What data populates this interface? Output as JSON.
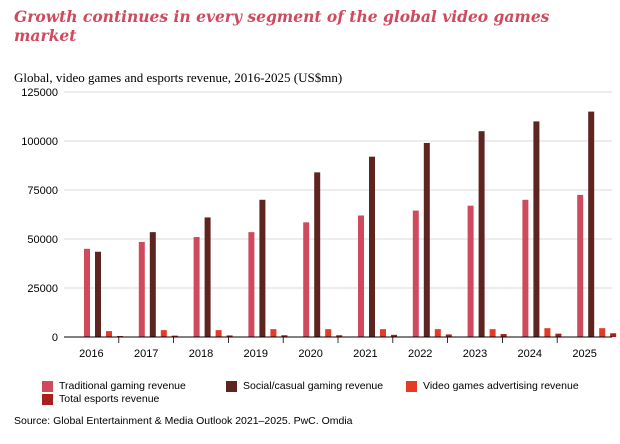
{
  "chart_data": {
    "type": "bar",
    "title": "Growth continues in every segment of the global video games market",
    "subtitle": "Global, video games and esports revenue, 2016-2025 (US$mn)",
    "source": "Source: Global Entertainment & Media Outlook 2021–2025. PwC. Omdia",
    "categories": [
      "2016",
      "2017",
      "2018",
      "2019",
      "2020",
      "2021",
      "2022",
      "2023",
      "2024",
      "2025"
    ],
    "ylim": [
      0,
      125000
    ],
    "yticks": [
      0,
      25000,
      50000,
      75000,
      100000,
      125000
    ],
    "ytick_labels": [
      "0",
      "25000",
      "50000",
      "75000",
      "100000",
      "125000"
    ],
    "grid": "horizontal",
    "legend_position": "bottom",
    "series": [
      {
        "name": "Traditional gaming revenue",
        "color": "#d04a5e",
        "values": [
          45000,
          48500,
          51000,
          53500,
          58500,
          62000,
          64500,
          67000,
          70000,
          72500
        ]
      },
      {
        "name": "Social/casual gaming revenue",
        "color": "#5e2420",
        "values": [
          43500,
          53500,
          61000,
          70000,
          84000,
          92000,
          99000,
          105000,
          110000,
          115000
        ]
      },
      {
        "name": "Video games advertising revenue",
        "color": "#e33b26",
        "values": [
          3000,
          3500,
          3500,
          4000,
          4000,
          4000,
          4000,
          4000,
          4500,
          4500
        ]
      },
      {
        "name": "Total esports revenue",
        "color": "#a8201c",
        "values": [
          500,
          700,
          800,
          900,
          900,
          1100,
          1300,
          1500,
          1700,
          1900
        ]
      }
    ]
  }
}
